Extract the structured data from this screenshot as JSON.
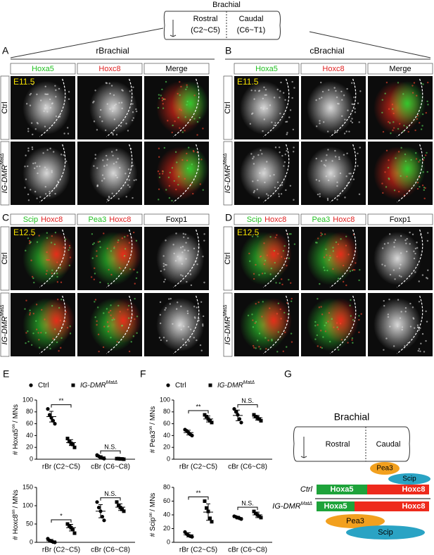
{
  "top": {
    "title": "Brachial",
    "rostral": "Rostral",
    "rostral_range": "(C2~C5)",
    "caudal": "Caudal",
    "caudal_range": "(C6~T1)"
  },
  "panels": [
    {
      "letter": "A",
      "title": "rBrachial",
      "stage": "E11.5",
      "columns": [
        [
          {
            "text": "Hoxa5",
            "color": "#22c022"
          }
        ],
        [
          {
            "text": "Hoxc8",
            "color": "#e02020"
          }
        ],
        [
          {
            "text": "Merge",
            "color": "#000000"
          }
        ]
      ],
      "rows": [
        {
          "text": "Ctrl"
        },
        {
          "text": "IG-DMR",
          "sup": "MatΔ"
        }
      ]
    },
    {
      "letter": "B",
      "title": "cBrachial",
      "stage": "E11.5",
      "columns": [
        [
          {
            "text": "Hoxa5",
            "color": "#22c022"
          }
        ],
        [
          {
            "text": "Hoxc8",
            "color": "#e02020"
          }
        ],
        [
          {
            "text": "Merge",
            "color": "#000000"
          }
        ]
      ],
      "rows": [
        {
          "text": "Ctrl"
        },
        {
          "text": "IG-DMR",
          "sup": "MatΔ"
        }
      ]
    },
    {
      "letter": "C",
      "stage": "E12.5",
      "columns": [
        [
          {
            "text": "Scip",
            "color": "#22c022"
          },
          {
            "text": "Hoxc8",
            "color": "#e02020"
          }
        ],
        [
          {
            "text": "Pea3",
            "color": "#22c022"
          },
          {
            "text": "Hoxc8",
            "color": "#e02020"
          }
        ],
        [
          {
            "text": "Foxp1",
            "color": "#000000"
          }
        ]
      ],
      "rows": [
        {
          "text": "Ctrl"
        },
        {
          "text": "IG-DMR",
          "sup": "MatΔ"
        }
      ]
    },
    {
      "letter": "D",
      "stage": "E12.5",
      "columns": [
        [
          {
            "text": "Scip",
            "color": "#22c022"
          },
          {
            "text": "Hoxc8",
            "color": "#e02020"
          }
        ],
        [
          {
            "text": "Pea3",
            "color": "#22c022"
          },
          {
            "text": "Hoxc8",
            "color": "#e02020"
          }
        ],
        [
          {
            "text": "Foxp1",
            "color": "#000000"
          }
        ]
      ],
      "rows": [
        {
          "text": "Ctrl"
        },
        {
          "text": "IG-DMR",
          "sup": "MatΔ"
        }
      ]
    }
  ],
  "chart_data": [
    {
      "type": "dotplot",
      "panel": "E",
      "ylabel": "# Hoxa5",
      "ylabel_sup": "on",
      "ylabel_suffix": "/ MNs",
      "categories": [
        "rBr (C2~C5)",
        "cBr (C6~C8)"
      ],
      "significance": [
        "**",
        "N.S."
      ],
      "ylim": [
        0,
        100
      ],
      "yticks": [
        0,
        20,
        40,
        60,
        80,
        100
      ],
      "series": [
        {
          "name": "Ctrl",
          "marker": "circle",
          "values": [
            [
              85,
              75,
              70,
              65,
              60
            ],
            [
              7,
              5,
              3,
              2,
              1
            ]
          ],
          "mean": [
            72,
            4
          ],
          "sd": [
            9,
            2
          ]
        },
        {
          "name": "IG-DMR",
          "name_sup": "MatΔ",
          "marker": "square",
          "values": [
            [
              35,
              30,
              27,
              25,
              20
            ],
            [
              1,
              1,
              0.5,
              0.5,
              0
            ]
          ],
          "mean": [
            28,
            1
          ],
          "sd": [
            5,
            0.5
          ]
        }
      ]
    },
    {
      "type": "dotplot",
      "ylabel": "# Hoxc8",
      "ylabel_sup": "on",
      "ylabel_suffix": "/ MNs",
      "categories": [
        "rBr (C2~C5)",
        "cBr (C6~C8)"
      ],
      "significance": [
        "*",
        "N.S."
      ],
      "ylim": [
        0,
        150
      ],
      "yticks": [
        0,
        50,
        100,
        150
      ],
      "series": [
        {
          "marker": "circle",
          "values": [
            [
              10,
              5,
              3,
              1,
              0
            ],
            [
              110,
              95,
              85,
              70,
              60
            ]
          ],
          "mean": [
            4,
            85
          ],
          "sd": [
            4,
            18
          ]
        },
        {
          "marker": "square",
          "values": [
            [
              50,
              45,
              40,
              35,
              25
            ],
            [
              110,
              100,
              95,
              90,
              85
            ]
          ],
          "mean": [
            40,
            96
          ],
          "sd": [
            9,
            9
          ]
        }
      ]
    },
    {
      "type": "dotplot",
      "panel": "F",
      "ylabel": "# Pea3",
      "ylabel_sup": "on",
      "ylabel_suffix": "/ MNs",
      "categories": [
        "rBr (C2~C5)",
        "cBr (C6~C8)"
      ],
      "significance": [
        "**",
        "N.S."
      ],
      "ylim": [
        0,
        100
      ],
      "yticks": [
        0,
        20,
        40,
        60,
        80,
        100
      ],
      "series": [
        {
          "name": "Ctrl",
          "marker": "circle",
          "values": [
            [
              50,
              48,
              45,
              42,
              40
            ],
            [
              85,
              80,
              75,
              68,
              62
            ]
          ],
          "mean": [
            45,
            74
          ],
          "sd": [
            4,
            9
          ]
        },
        {
          "name": "IG-DMR",
          "name_sup": "MatΔ",
          "marker": "square",
          "values": [
            [
              75,
              72,
              68,
              65,
              62
            ],
            [
              75,
              72,
              70,
              68,
              65
            ]
          ],
          "mean": [
            68,
            70
          ],
          "sd": [
            5,
            4
          ]
        }
      ]
    },
    {
      "type": "dotplot",
      "ylabel": "# Scip",
      "ylabel_sup": "on",
      "ylabel_suffix": "/ MNs",
      "categories": [
        "rBr (C2~C5)",
        "cBr (C6~C8)"
      ],
      "significance": [
        "**",
        "N.S."
      ],
      "ylim": [
        0,
        80
      ],
      "yticks": [
        0,
        20,
        40,
        60,
        80
      ],
      "series": [
        {
          "marker": "circle",
          "values": [
            [
              15,
              12,
              10,
              9,
              8
            ],
            [
              38,
              37,
              36,
              35,
              34
            ]
          ],
          "mean": [
            11,
            36
          ],
          "sd": [
            3,
            2
          ]
        },
        {
          "marker": "square",
          "values": [
            [
              60,
              50,
              45,
              35,
              30
            ],
            [
              45,
              42,
              40,
              38,
              36
            ]
          ],
          "mean": [
            44,
            40
          ],
          "sd": [
            12,
            4
          ]
        }
      ]
    }
  ],
  "diagram": {
    "letter": "G",
    "title": "Brachial",
    "rostral": "Rostral",
    "caudal": "Caudal",
    "upper_ovals": [
      "Pea3",
      "Scip"
    ],
    "ctrl": {
      "label": "Ctrl",
      "bars": [
        "Hoxa5",
        "Hoxc8"
      ]
    },
    "mutant": {
      "label": "IG-DMR",
      "sup": "MatΔ",
      "bars": [
        "Hoxa5",
        "Hoxc8"
      ]
    },
    "lower_ovals": [
      "Pea3",
      "Scip"
    ]
  }
}
